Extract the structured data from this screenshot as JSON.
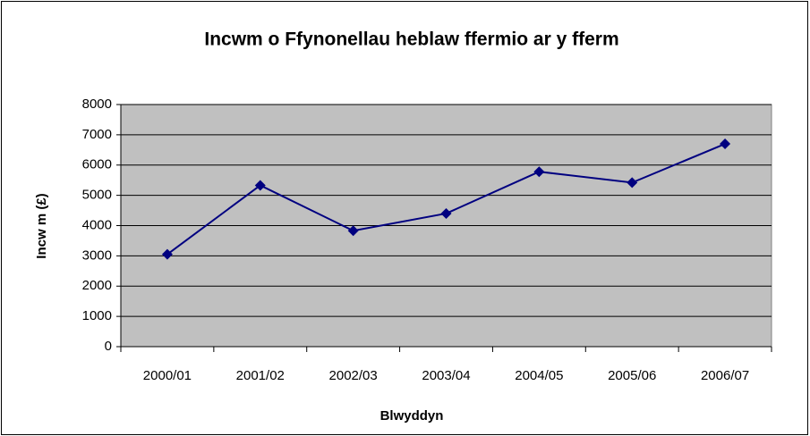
{
  "chart_data": {
    "type": "line",
    "title": "Incwm o Ffynonellau heblaw ffermio ar y fferm",
    "x_label": "Blwyddyn",
    "y_label": "Incw m (£)",
    "categories": [
      "2000/01",
      "2001/02",
      "2002/03",
      "2003/04",
      "2004/05",
      "2005/06",
      "2006/07"
    ],
    "series": [
      {
        "name": "Incwm",
        "color": "#000080",
        "values": [
          3050,
          5330,
          3830,
          4400,
          5780,
          5420,
          6700
        ]
      }
    ],
    "ylim": [
      0,
      8000
    ],
    "yticks": [
      0,
      1000,
      2000,
      3000,
      4000,
      5000,
      6000,
      7000,
      8000
    ],
    "grid": true
  }
}
